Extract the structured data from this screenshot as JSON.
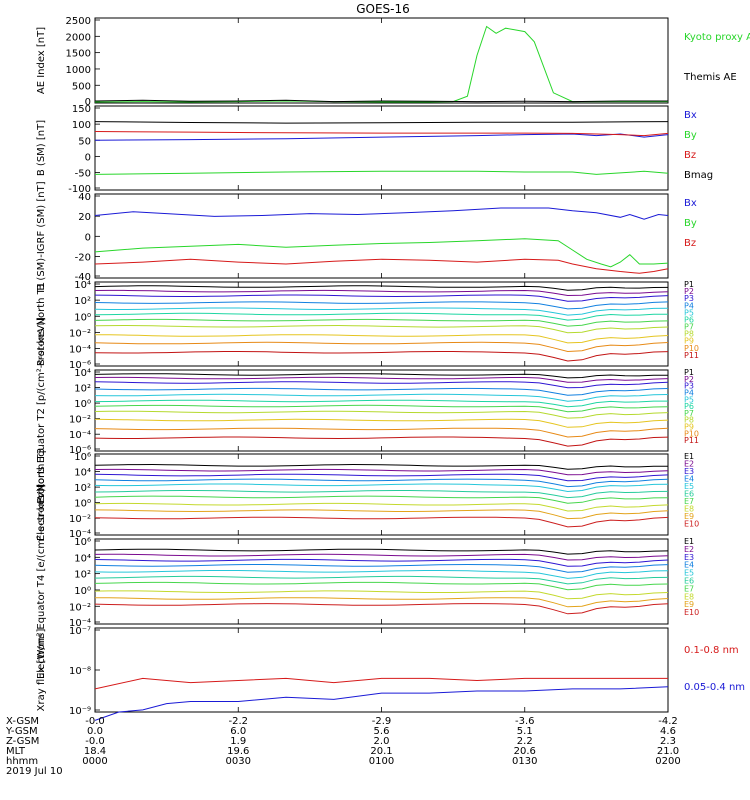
{
  "title": "GOES-16",
  "colors": {
    "black": "#000000",
    "blue": "#1a1ad6",
    "green": "#29d62b",
    "red": "#d61a1a",
    "P": [
      "#000000",
      "#7a0a8f",
      "#2e16d2",
      "#1280e0",
      "#26c6da",
      "#1ed6a3",
      "#47d64d",
      "#b5d92e",
      "#e5c521",
      "#e78a17",
      "#c21414"
    ],
    "E": [
      "#000000",
      "#7a0a8f",
      "#2e16d2",
      "#1280e0",
      "#26c6da",
      "#26cc9b",
      "#47d64d",
      "#c4d92e",
      "#e3a31b",
      "#cc1f1f"
    ]
  },
  "x_ticks_minutes": [
    0,
    30,
    60,
    90,
    120
  ],
  "footer": {
    "labels": [
      "X-GSM",
      "Y-GSM",
      "Z-GSM",
      "MLT",
      "hhmm",
      "2019 Jul 10"
    ],
    "rows": [
      [
        "-0.0",
        "-2.2",
        "-2.9",
        "-3.6",
        "-4.2"
      ],
      [
        "0.0",
        "6.0",
        "5.6",
        "5.1",
        "4.6"
      ],
      [
        "-0.0",
        "1.9",
        "2.0",
        "2.2",
        "2.3"
      ],
      [
        "18.4",
        "19.6",
        "20.1",
        "20.6",
        "21.0"
      ],
      [
        "0000",
        "0030",
        "0100",
        "0130",
        "0200"
      ]
    ]
  },
  "chart_data": [
    {
      "type": "line",
      "ylabel": "AE Index [nT]",
      "ylim": [
        0,
        2500
      ],
      "ytick_labels": [
        "2500",
        "2000",
        "1500",
        "1000",
        "500",
        "0"
      ],
      "legend": [
        {
          "label": "Kyoto proxy AE",
          "color": "#29d62b"
        },
        {
          "label": "Themis AE",
          "color": "#000000"
        }
      ],
      "series": [
        {
          "name": "Kyoto proxy AE",
          "color": "#29d62b",
          "x": [
            0,
            10,
            20,
            30,
            40,
            50,
            60,
            70,
            75,
            78,
            80,
            82,
            84,
            86,
            88,
            90,
            92,
            96,
            100,
            110,
            120
          ],
          "values": [
            30,
            40,
            30,
            40,
            60,
            40,
            30,
            30,
            40,
            200,
            1400,
            2250,
            2050,
            2200,
            2150,
            2100,
            1800,
            300,
            40,
            40,
            40
          ]
        },
        {
          "name": "Themis AE",
          "color": "#000000",
          "x": [
            0,
            10,
            20,
            30,
            40,
            50,
            60,
            70,
            80,
            90,
            100,
            110,
            120
          ],
          "values": [
            60,
            80,
            50,
            60,
            80,
            40,
            60,
            50,
            40,
            50,
            40,
            60,
            60
          ]
        }
      ]
    },
    {
      "type": "line",
      "ylabel": "B (SM) [nT]",
      "ylim": [
        -120,
        150
      ],
      "ytick_labels": [
        "150",
        "100",
        "50",
        "0",
        "-50",
        "-100"
      ],
      "legend": [
        {
          "label": "Bx",
          "color": "#1a1ad6"
        },
        {
          "label": "By",
          "color": "#29d62b"
        },
        {
          "label": "Bz",
          "color": "#d61a1a"
        },
        {
          "label": "Bmag",
          "color": "#000000"
        }
      ],
      "series": [
        {
          "name": "Bx",
          "color": "#1a1ad6",
          "x": [
            0,
            20,
            40,
            60,
            80,
            90,
            100,
            105,
            110,
            115,
            120
          ],
          "values": [
            40,
            42,
            45,
            50,
            55,
            58,
            60,
            55,
            60,
            50,
            58
          ]
        },
        {
          "name": "By",
          "color": "#29d62b",
          "x": [
            0,
            20,
            40,
            60,
            80,
            90,
            100,
            105,
            110,
            115,
            120
          ],
          "values": [
            -70,
            -66,
            -62,
            -60,
            -60,
            -62,
            -62,
            -70,
            -65,
            -60,
            -66
          ]
        },
        {
          "name": "Bz",
          "color": "#d61a1a",
          "x": [
            0,
            20,
            40,
            60,
            80,
            90,
            100,
            105,
            110,
            115,
            120
          ],
          "values": [
            68,
            66,
            64,
            63,
            63,
            63,
            62,
            60,
            58,
            55,
            62
          ]
        },
        {
          "name": "Bmag",
          "color": "#000000",
          "x": [
            0,
            20,
            40,
            60,
            80,
            100,
            120
          ],
          "values": [
            100,
            97,
            95,
            96,
            98,
            98,
            100
          ]
        }
      ]
    },
    {
      "type": "line",
      "ylabel": "B (SM)-IGRF (SM) [nT]",
      "ylim": [
        -45,
        45
      ],
      "ytick_labels": [
        "40",
        "20",
        "0",
        "-20",
        "-40"
      ],
      "legend": [
        {
          "label": "Bx",
          "color": "#1a1ad6"
        },
        {
          "label": "By",
          "color": "#29d62b"
        },
        {
          "label": "Bz",
          "color": "#d61a1a"
        }
      ],
      "series": [
        {
          "name": "Bx",
          "color": "#1a1ad6",
          "x": [
            0,
            8,
            15,
            25,
            35,
            45,
            55,
            65,
            75,
            85,
            95,
            100,
            105,
            110,
            112,
            115,
            118,
            120
          ],
          "values": [
            22,
            26,
            24,
            21,
            22,
            24,
            23,
            25,
            27,
            30,
            30,
            27,
            25,
            20,
            23,
            18,
            23,
            22
          ]
        },
        {
          "name": "By",
          "color": "#29d62b",
          "x": [
            0,
            10,
            20,
            30,
            40,
            50,
            60,
            70,
            80,
            90,
            97,
            100,
            103,
            106,
            108,
            110,
            112,
            114,
            117,
            120
          ],
          "values": [
            -17,
            -13,
            -11,
            -9,
            -12,
            -10,
            -8,
            -7,
            -5,
            -3,
            -5,
            -15,
            -25,
            -30,
            -33,
            -28,
            -20,
            -30,
            -30,
            -29
          ]
        },
        {
          "name": "Bz",
          "color": "#d61a1a",
          "x": [
            0,
            10,
            20,
            30,
            40,
            50,
            60,
            70,
            80,
            90,
            97,
            100,
            105,
            110,
            114,
            117,
            120
          ],
          "values": [
            -30,
            -28,
            -25,
            -28,
            -30,
            -27,
            -25,
            -26,
            -28,
            -25,
            -26,
            -30,
            -35,
            -38,
            -40,
            -38,
            -35
          ]
        }
      ]
    },
    {
      "type": "line",
      "ylabel": "Protons North T1",
      "ylim": [
        -7,
        4
      ],
      "yscale": "log",
      "ytick_labels": [
        "10⁴",
        "10²",
        "10⁰",
        "10⁻²",
        "10⁻⁴",
        "10⁻⁶"
      ],
      "legend": [
        {
          "label": "P1"
        },
        {
          "label": "P2"
        },
        {
          "label": "P3"
        },
        {
          "label": "P4"
        },
        {
          "label": "P5"
        },
        {
          "label": "P6"
        },
        {
          "label": "P7"
        },
        {
          "label": "P8"
        },
        {
          "label": "P9"
        },
        {
          "label": "P10"
        },
        {
          "label": "P11"
        }
      ],
      "channels_log10": [
        3.4,
        2.8,
        2.2,
        1.3,
        0.5,
        -0.2,
        -1.0,
        -1.8,
        -3.0,
        -4.0,
        -5.2
      ]
    },
    {
      "type": "line",
      "ylabel": "Protons Equator T2 [p/(cm²-s-sr-keV)]",
      "ylim": [
        -7,
        4
      ],
      "yscale": "log",
      "ytick_labels": [
        "10⁴",
        "10²",
        "10⁰",
        "10⁻²",
        "10⁻⁴",
        "10⁻⁶"
      ],
      "legend": [
        {
          "label": "P1"
        },
        {
          "label": "P2"
        },
        {
          "label": "P3"
        },
        {
          "label": "P4"
        },
        {
          "label": "P5"
        },
        {
          "label": "P6"
        },
        {
          "label": "P7"
        },
        {
          "label": "P8"
        },
        {
          "label": "P9"
        },
        {
          "label": "P10"
        },
        {
          "label": "P11"
        }
      ],
      "channels_log10": [
        3.4,
        2.9,
        2.3,
        1.4,
        0.6,
        -0.2,
        -0.9,
        -1.7,
        -2.8,
        -4.0,
        -5.2
      ]
    },
    {
      "type": "line",
      "ylabel": "Electrons North T3",
      "ylim": [
        -4,
        6
      ],
      "yscale": "log",
      "ytick_labels": [
        "10⁶",
        "10⁴",
        "10²",
        "10⁰",
        "10⁻²",
        "10⁻⁴"
      ],
      "legend": [
        {
          "label": "E1"
        },
        {
          "label": "E2"
        },
        {
          "label": "E3"
        },
        {
          "label": "E4"
        },
        {
          "label": "E5"
        },
        {
          "label": "E6"
        },
        {
          "label": "E7"
        },
        {
          "label": "E8"
        },
        {
          "label": "E9"
        },
        {
          "label": "E10"
        }
      ],
      "channels_log10": [
        4.6,
        4.0,
        3.4,
        2.8,
        2.2,
        1.4,
        0.7,
        -0.2,
        -1.0,
        -1.9
      ]
    },
    {
      "type": "line",
      "ylabel": "Electrons Equator T4 [e/(cm²-s-sr-keV)]",
      "ylim": [
        -4,
        6
      ],
      "yscale": "log",
      "ytick_labels": [
        "10⁶",
        "10⁴",
        "10²",
        "10⁰",
        "10⁻²",
        "10⁻⁴"
      ],
      "legend": [
        {
          "label": "E1"
        },
        {
          "label": "E2"
        },
        {
          "label": "E3"
        },
        {
          "label": "E4"
        },
        {
          "label": "E5"
        },
        {
          "label": "E6"
        },
        {
          "label": "E7"
        },
        {
          "label": "E8"
        },
        {
          "label": "E9"
        },
        {
          "label": "E10"
        }
      ],
      "channels_log10": [
        4.7,
        4.1,
        3.5,
        2.9,
        2.2,
        1.5,
        0.8,
        -0.2,
        -1.0,
        -1.7
      ]
    },
    {
      "type": "line",
      "ylabel": "Xray flux [W/m²]",
      "ylim": [
        -9,
        -7
      ],
      "yscale": "log",
      "ytick_labels": [
        "10⁻⁷",
        "10⁻⁸",
        "10⁻⁹"
      ],
      "legend": [
        {
          "label": "0.1-0.8 nm",
          "color": "#d61a1a"
        },
        {
          "label": "0.05-0.4 nm",
          "color": "#1a1ad6"
        }
      ],
      "series": [
        {
          "name": "0.1-0.8 nm",
          "color": "#d61a1a",
          "x": [
            0,
            10,
            20,
            30,
            40,
            50,
            60,
            70,
            80,
            90,
            100,
            110,
            120
          ],
          "values": [
            -8.45,
            -8.2,
            -8.3,
            -8.25,
            -8.2,
            -8.3,
            -8.2,
            -8.2,
            -8.25,
            -8.2,
            -8.2,
            -8.2,
            -8.2
          ]
        },
        {
          "name": "0.05-0.4 nm",
          "color": "#1a1ad6",
          "x": [
            0,
            5,
            10,
            15,
            20,
            30,
            40,
            50,
            60,
            70,
            80,
            90,
            100,
            110,
            120
          ],
          "values": [
            -9.2,
            -9.0,
            -8.95,
            -8.8,
            -8.75,
            -8.75,
            -8.65,
            -8.7,
            -8.55,
            -8.55,
            -8.5,
            -8.5,
            -8.45,
            -8.45,
            -8.4
          ]
        }
      ]
    }
  ]
}
